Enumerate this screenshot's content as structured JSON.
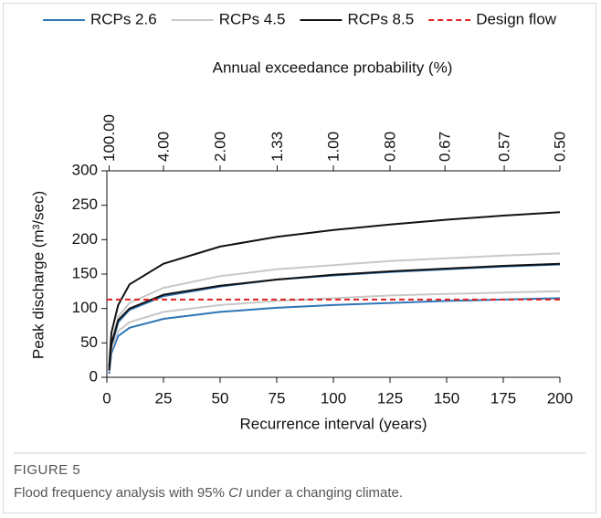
{
  "chart_data": {
    "type": "line",
    "x_axis_label": "Recurrence interval (years)",
    "y_axis_label": "Peak discharge (m³/sec)",
    "top_axis_label": "Annual exceedance probability (%)",
    "x": [
      1,
      2,
      5,
      10,
      25,
      50,
      75,
      100,
      125,
      150,
      175,
      200
    ],
    "xlim": [
      0,
      200
    ],
    "xticks": [
      0,
      25,
      50,
      75,
      100,
      125,
      150,
      175,
      200
    ],
    "ylim": [
      0,
      300
    ],
    "yticks": [
      0,
      50,
      100,
      150,
      200,
      250,
      300
    ],
    "top_ticks": [
      {
        "value": 100,
        "label": "100.00"
      },
      {
        "value": 4,
        "label": "4.00"
      },
      {
        "value": 2,
        "label": "2.00"
      },
      {
        "value": 1.33,
        "label": "1.33"
      },
      {
        "value": 1,
        "label": "1.00"
      },
      {
        "value": 0.8,
        "label": "0.80"
      },
      {
        "value": 0.67,
        "label": "0.67"
      },
      {
        "value": 0.57,
        "label": "0.57"
      },
      {
        "value": 0.5,
        "label": "0.50"
      }
    ],
    "series": [
      {
        "name": "RCPs 2.6",
        "color": "#2e75b6",
        "curves": [
          {
            "values": [
              5,
              35,
              60,
              72,
              85,
              95,
              101,
              105,
              108,
              111,
              113,
              115
            ]
          },
          {
            "values": [
              10,
              45,
              80,
              98,
              118,
              132,
              142,
              148,
              153,
              157,
              161,
              164
            ]
          }
        ]
      },
      {
        "name": "RCPs 4.5",
        "color": "#c8c8c8",
        "curves": [
          {
            "values": [
              8,
              40,
              67,
              80,
              95,
              105,
              111,
              115,
              119,
              121,
              123,
              125
            ]
          },
          {
            "values": [
              12,
              50,
              88,
              108,
              130,
              147,
              157,
              163,
              169,
              173,
              177,
              180
            ]
          }
        ]
      },
      {
        "name": "RCPs 8.5",
        "color": "#111111",
        "curves": [
          {
            "values": [
              10,
              48,
              83,
              100,
              120,
              133,
              142,
              149,
              154,
              158,
              162,
              165
            ]
          },
          {
            "values": [
              15,
              65,
              105,
              135,
              165,
              190,
              204,
              214,
              222,
              229,
              235,
              240
            ]
          }
        ]
      }
    ],
    "reference_line": {
      "name": "Design flow",
      "color": "#e02020",
      "style": "dashed",
      "value": 113
    }
  },
  "figure": {
    "label": "FIGURE 5",
    "caption": {
      "before": "Flood frequency analysis with 95% ",
      "italic": "CI",
      "after": " under a changing climate."
    }
  }
}
